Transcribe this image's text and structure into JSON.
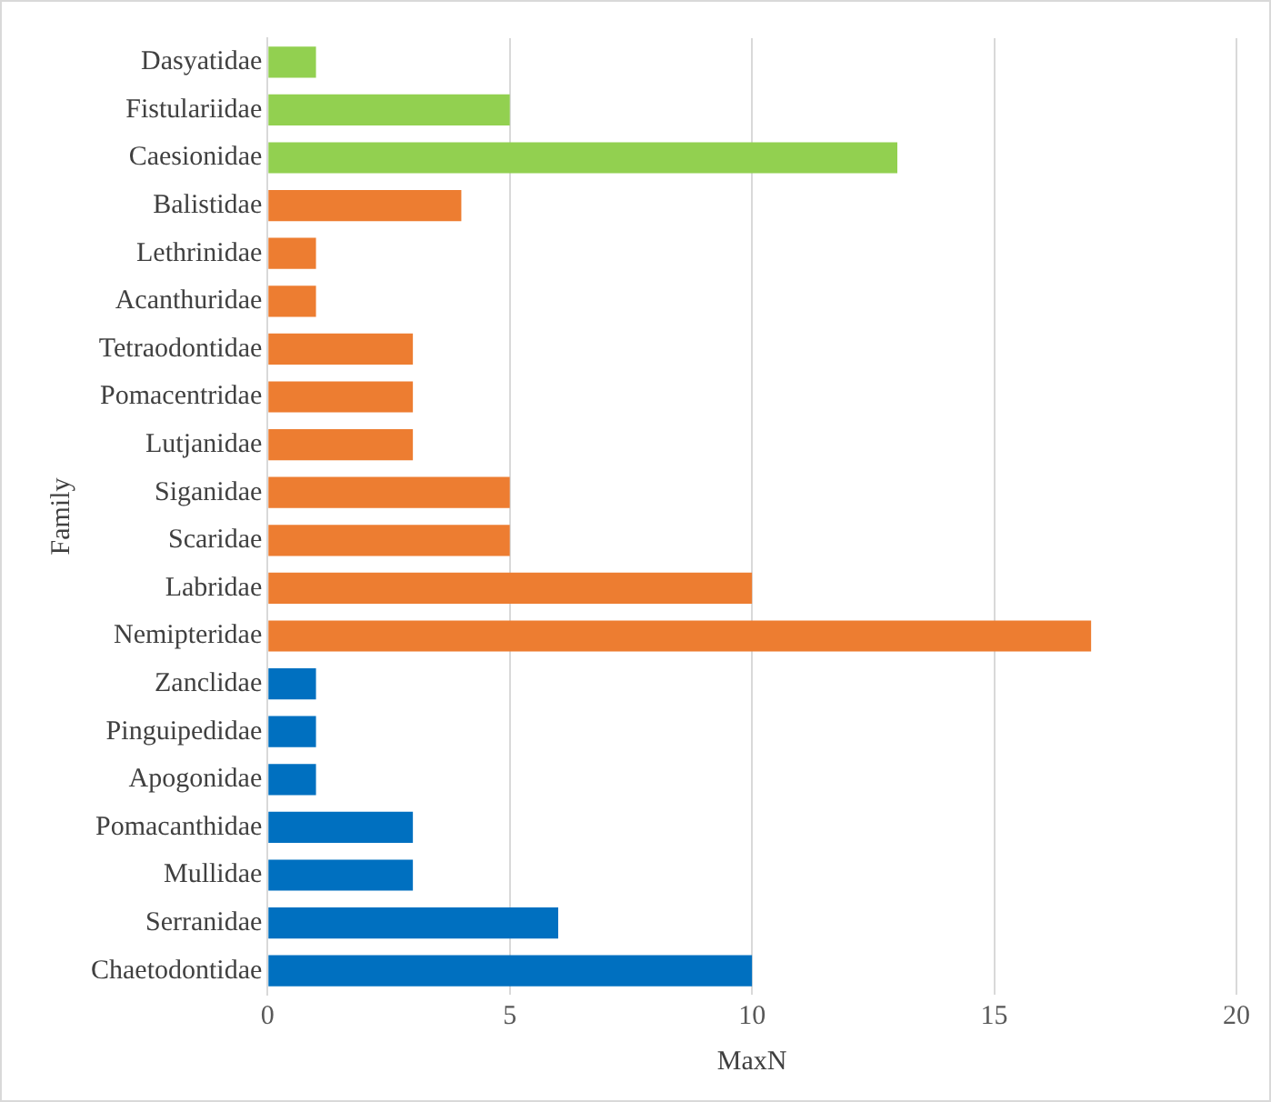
{
  "chart_data": {
    "type": "bar",
    "orientation": "horizontal",
    "xlabel": "MaxN",
    "ylabel": "Family",
    "categories": [
      "Dasyatidae",
      "Fistulariidae",
      "Caesionidae",
      "Balistidae",
      "Lethrinidae",
      "Acanthuridae",
      "Tetraodontidae",
      "Pomacentridae",
      "Lutjanidae",
      "Siganidae",
      "Scaridae",
      "Labridae",
      "Nemipteridae",
      "Zanclidae",
      "Pinguipedidae",
      "Apogonidae",
      "Pomacanthidae",
      "Mullidae",
      "Serranidae",
      "Chaetodontidae"
    ],
    "values": [
      1,
      5,
      13,
      4,
      1,
      1,
      3,
      3,
      3,
      5,
      5,
      10,
      17,
      1,
      1,
      1,
      3,
      3,
      6,
      10
    ],
    "colors": [
      "#92d050",
      "#92d050",
      "#92d050",
      "#ed7d31",
      "#ed7d31",
      "#ed7d31",
      "#ed7d31",
      "#ed7d31",
      "#ed7d31",
      "#ed7d31",
      "#ed7d31",
      "#ed7d31",
      "#ed7d31",
      "#0070c0",
      "#0070c0",
      "#0070c0",
      "#0070c0",
      "#0070c0",
      "#0070c0",
      "#0070c0"
    ],
    "xlim": [
      0,
      20
    ],
    "xticks": [
      0,
      5,
      10,
      15,
      20
    ],
    "grid": "x"
  }
}
